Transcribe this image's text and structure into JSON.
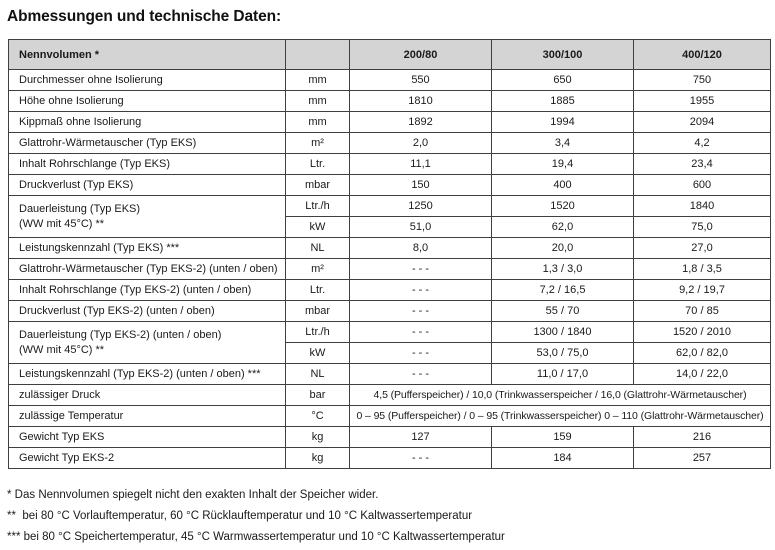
{
  "title": "Abmessungen und technische Daten:",
  "colors": {
    "header_bg": "#d4d4d4",
    "border": "#3f3f3f",
    "text": "#1a1a1a"
  },
  "table": {
    "header": {
      "label": "Nennvolumen *",
      "unit": "",
      "cols": [
        "200/80",
        "300/100",
        "400/120"
      ]
    },
    "rows": [
      {
        "kind": "simple",
        "label": "Durchmesser ohne Isolierung",
        "unit": "mm",
        "values": [
          "550",
          "650",
          "750"
        ]
      },
      {
        "kind": "simple",
        "label": "Höhe ohne Isolierung",
        "unit": "mm",
        "values": [
          "1810",
          "1885",
          "1955"
        ]
      },
      {
        "kind": "simple",
        "label": "Kippmaß ohne Isolierung",
        "unit": "mm",
        "values": [
          "1892",
          "1994",
          "2094"
        ]
      },
      {
        "kind": "simple",
        "label": "Glattrohr-Wärmetauscher (Typ EKS)",
        "unit": "m²",
        "values": [
          "2,0",
          "3,4",
          "4,2"
        ]
      },
      {
        "kind": "simple",
        "label": "Inhalt Rohrschlange (Typ EKS)",
        "unit": "Ltr.",
        "values": [
          "11,1",
          "19,4",
          "23,4"
        ]
      },
      {
        "kind": "simple",
        "label": "Druckverlust (Typ EKS)",
        "unit": "mbar",
        "values": [
          "150",
          "400",
          "600"
        ]
      },
      {
        "kind": "group",
        "label": "Dauerleistung (Typ EKS)",
        "label2": "(WW mit 45°C) **",
        "subrows": [
          {
            "unit": "Ltr./h",
            "values": [
              "1250",
              "1520",
              "1840"
            ]
          },
          {
            "unit": "kW",
            "values": [
              "51,0",
              "62,0",
              "75,0"
            ]
          }
        ]
      },
      {
        "kind": "simple",
        "label": "Leistungskennzahl (Typ EKS) ***",
        "unit": "NL",
        "values": [
          "8,0",
          "20,0",
          "27,0"
        ]
      },
      {
        "kind": "simple",
        "label": "Glattrohr-Wärmetauscher (Typ EKS-2) (unten / oben)",
        "unit": "m²",
        "values": [
          "- - -",
          "1,3 / 3,0",
          "1,8 / 3,5"
        ]
      },
      {
        "kind": "simple",
        "label": "Inhalt Rohrschlange (Typ EKS-2) (unten / oben)",
        "unit": "Ltr.",
        "values": [
          "- - -",
          "7,2 / 16,5",
          "9,2 / 19,7"
        ]
      },
      {
        "kind": "simple",
        "label": "Druckverlust (Typ EKS-2) (unten / oben)",
        "unit": "mbar",
        "values": [
          "- - -",
          "55 / 70",
          "70 / 85"
        ]
      },
      {
        "kind": "group",
        "label": "Dauerleistung (Typ EKS-2) (unten / oben)",
        "label2": "(WW mit 45°C) **",
        "subrows": [
          {
            "unit": "Ltr./h",
            "values": [
              "- - -",
              "1300 / 1840",
              "1520 / 2010"
            ]
          },
          {
            "unit": "kW",
            "values": [
              "- - -",
              "53,0 / 75,0",
              "62,0 / 82,0"
            ]
          }
        ]
      },
      {
        "kind": "simple",
        "label": "Leistungskennzahl (Typ EKS-2) (unten / oben) ***",
        "unit": "NL",
        "values": [
          "- - -",
          "11,0 / 17,0",
          "14,0 / 22,0"
        ]
      },
      {
        "kind": "span",
        "label": "zulässiger Druck",
        "unit": "bar",
        "value": "4,5 (Pufferspeicher) / 10,0 (Trinkwasserspeicher / 16,0 (Glattrohr-Wärmetauscher)"
      },
      {
        "kind": "span",
        "label": "zulässige Temperatur",
        "unit": "°C",
        "value": "0 – 95 (Pufferspeicher) / 0 – 95 (Trinkwasserspeicher) 0 – 110 (Glattrohr-Wärmetauscher)"
      },
      {
        "kind": "simple",
        "label": "Gewicht Typ EKS",
        "unit": "kg",
        "values": [
          "127",
          "159",
          "216"
        ]
      },
      {
        "kind": "simple",
        "label": "Gewicht Typ EKS-2",
        "unit": "kg",
        "values": [
          "- - -",
          "184",
          "257"
        ]
      }
    ]
  },
  "footnotes": [
    "* Das Nennvolumen spiegelt nicht den exakten Inhalt der Speicher wider.",
    "**  bei 80 °C Vorlauftemperatur, 60 °C Rücklauftemperatur und 10 °C Kaltwassertemperatur",
    "*** bei 80 °C Speichertemperatur, 45 °C Warmwassertemperatur und 10 °C Kaltwassertemperatur"
  ]
}
